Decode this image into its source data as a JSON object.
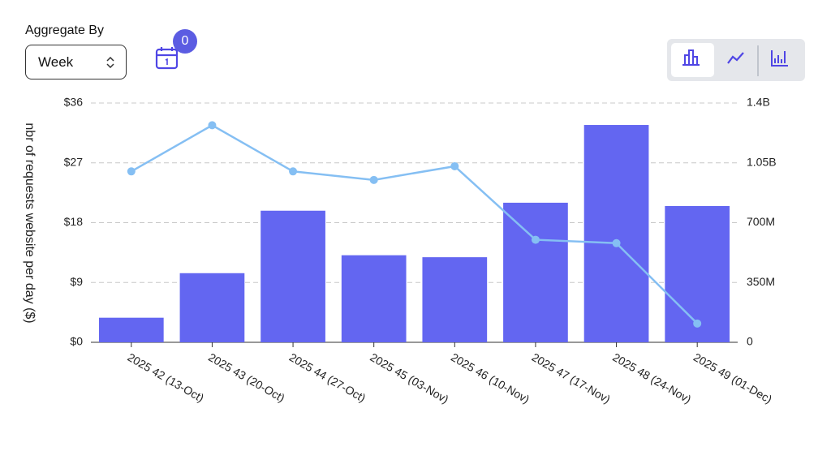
{
  "controls": {
    "aggregate_label": "Aggregate By",
    "aggregate_value": "Week",
    "badge": "0"
  },
  "chart_data": {
    "type": "bar",
    "ylabel": "nbr of requests website per day ($)",
    "categories": [
      "2025 42 (13-Oct)",
      "2025 43 (20-Oct)",
      "2025 44 (27-Oct)",
      "2025 45 (03-Nov)",
      "2025 46 (10-Nov)",
      "2025 47 (17-Nov)",
      "2025 48 (24-Nov)",
      "2025 49 (01-Dec)"
    ],
    "series": [
      {
        "type": "bar",
        "color": "#6366f1",
        "values": [
          3.7,
          10.4,
          19.8,
          13.1,
          12.8,
          21.0,
          32.7,
          20.5
        ]
      },
      {
        "type": "line",
        "color": "#85bff3",
        "axis": "y2",
        "values": [
          1000000000,
          1270000000,
          1000000000,
          950000000,
          1030000000,
          600000000,
          580000000,
          110000000
        ]
      }
    ],
    "ylim": [
      0,
      36
    ],
    "yticks": [
      {
        "value": 0,
        "label": "$0"
      },
      {
        "value": 9,
        "label": "$9"
      },
      {
        "value": 18,
        "label": "$18"
      },
      {
        "value": 27,
        "label": "$27"
      },
      {
        "value": 36,
        "label": "$36"
      }
    ],
    "y2lim": [
      0,
      1400000000
    ],
    "y2ticks": [
      0,
      {
        "value": 350000000,
        "label": "350M"
      },
      {
        "value": 700000000,
        "label": "700M"
      },
      {
        "value": 1050000000,
        "label": "1.05B"
      },
      {
        "value": 1400000000,
        "label": "1.4B"
      }
    ],
    "grid": true
  }
}
